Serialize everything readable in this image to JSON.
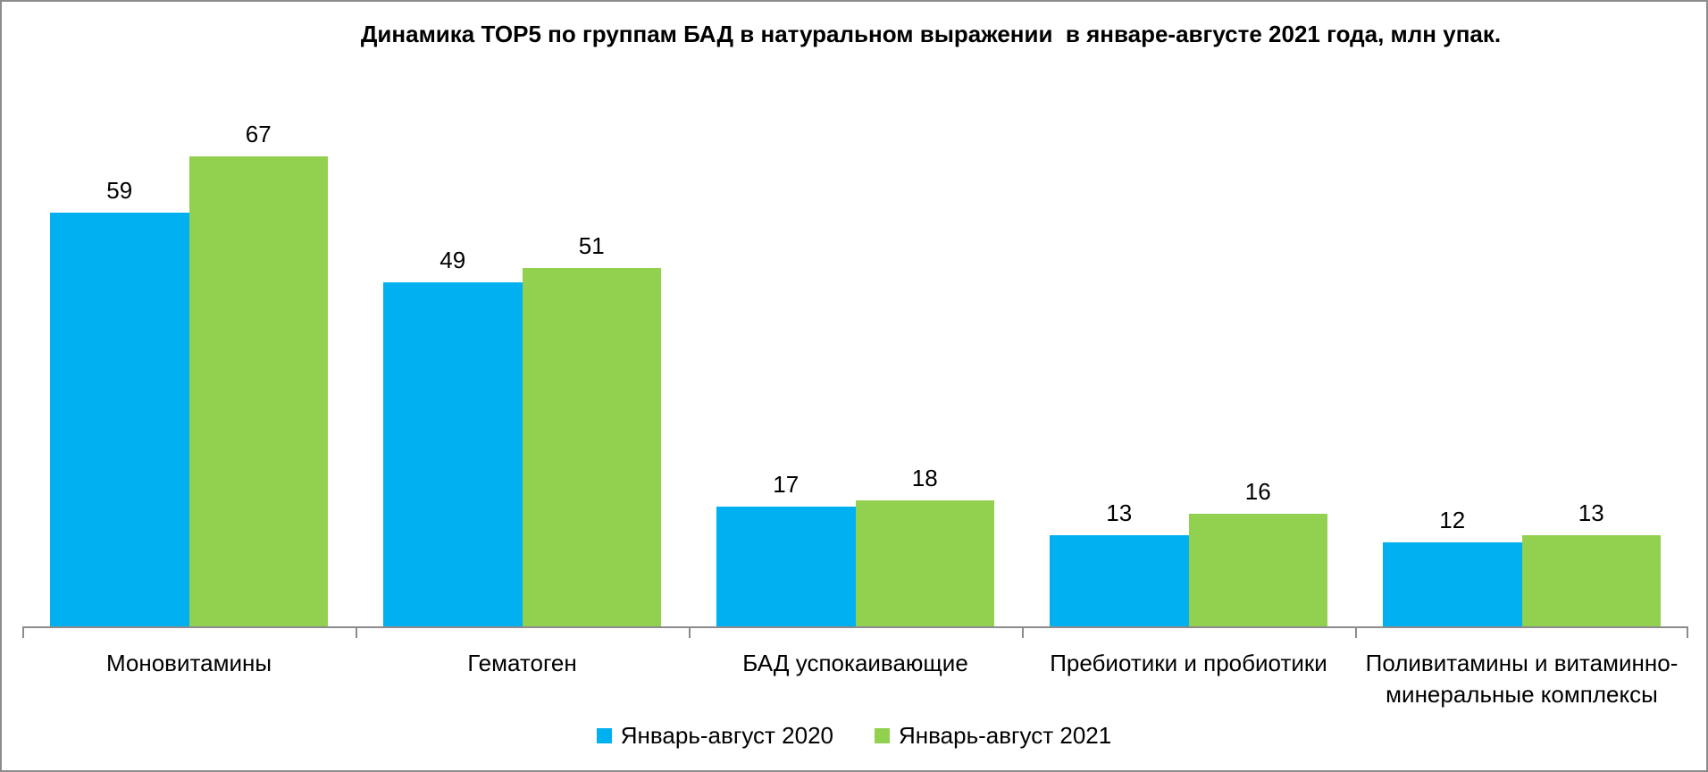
{
  "chart_data": {
    "type": "bar",
    "title": "Динамика TOP5 по группам БАД в натуральном выражении  в январе-августе 2021 года, млн упак.",
    "categories": [
      "Моновитамины",
      "Гематоген",
      "БАД успокаивающие",
      "Пребиотики и пробиотики",
      "Поливитамины и витаминно-минеральные комплексы"
    ],
    "series": [
      {
        "name": "Январь-август 2020",
        "color": "#00B0F0",
        "values": [
          59,
          49,
          17,
          13,
          12
        ]
      },
      {
        "name": "Январь-август 2021",
        "color": "#92D050",
        "values": [
          67,
          51,
          18,
          16,
          13
        ]
      }
    ],
    "ylim": [
      0,
      89
    ],
    "grid": false,
    "y_axis_visible": false,
    "value_labels": true,
    "legend_position": "bottom"
  },
  "colors": {
    "background": "#FFFFFF",
    "border": "#8C8C8C",
    "axis": "#8C8C8C",
    "text": "#000000",
    "series_2020": "#00B0F0",
    "series_2021": "#92D050"
  }
}
